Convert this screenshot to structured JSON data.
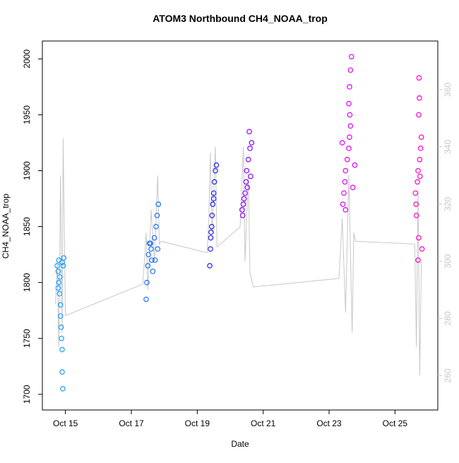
{
  "chart_data": {
    "type": "scatter",
    "title": "ATOM3 Northbound CH4_NOAA_trop",
    "x_label": "Date",
    "y_label": "CH4_NOAA_trop",
    "xlim": [
      14.3,
      26.3
    ],
    "ylim": [
      1686,
      2016
    ],
    "y2lim": [
      248,
      377
    ],
    "xticks": [
      {
        "value": 15,
        "label": "Oct 15"
      },
      {
        "value": 17,
        "label": "Oct 17"
      },
      {
        "value": 19,
        "label": "Oct 19"
      },
      {
        "value": 21,
        "label": "Oct 21"
      },
      {
        "value": 23,
        "label": "Oct 23"
      },
      {
        "value": 25,
        "label": "Oct 25"
      }
    ],
    "yticks": [
      1700,
      1750,
      1800,
      1850,
      1900,
      1950,
      2000
    ],
    "y2ticks": [
      260,
      280,
      300,
      320,
      340,
      360
    ],
    "y2_color": "#c8c8c8",
    "series": [
      {
        "color": "#c8c8c8",
        "axis": "y2",
        "mode": "line",
        "x": [
          14.7,
          14.75,
          14.8,
          14.85,
          14.9,
          14.93,
          15.0,
          17.35,
          17.45,
          17.5,
          17.6,
          17.7,
          17.8,
          17.85,
          17.9,
          19.3,
          19.35,
          19.4,
          19.45,
          19.55,
          19.6,
          20.3,
          20.4,
          20.45,
          20.55,
          20.6,
          20.7,
          23.3,
          23.4,
          23.5,
          23.6,
          23.7,
          23.75,
          23.8,
          25.6,
          25.65,
          25.7,
          25.75,
          25.8
        ],
        "values": [
          285,
          300,
          270,
          330,
          275,
          343,
          281,
          292,
          310,
          290,
          318,
          300,
          330,
          306,
          307,
          303,
          315,
          338,
          310,
          340,
          305,
          312,
          340,
          300,
          330,
          296,
          291,
          294,
          315,
          282,
          330,
          275,
          310,
          307,
          306,
          270,
          325,
          260,
          300
        ]
      },
      {
        "color": "#1a9fff",
        "mode": "points",
        "x": [
          14.75,
          14.8,
          14.78,
          14.8,
          14.82,
          14.85,
          14.85,
          14.87,
          14.88,
          14.9,
          14.9,
          14.92,
          14.93,
          14.95,
          14.9,
          14.83,
          14.78
        ],
        "values": [
          1815,
          1820,
          1810,
          1800,
          1790,
          1780,
          1770,
          1760,
          1750,
          1740,
          1720,
          1705,
          1815,
          1822,
          1818,
          1805,
          1795
        ]
      },
      {
        "color": "#1f6fff",
        "mode": "points",
        "x": [
          17.45,
          17.47,
          17.5,
          17.52,
          17.55,
          17.6,
          17.62,
          17.65,
          17.7,
          17.75,
          17.78,
          17.82,
          17.8,
          17.72,
          17.58
        ],
        "values": [
          1785,
          1800,
          1815,
          1825,
          1835,
          1830,
          1820,
          1810,
          1840,
          1850,
          1860,
          1870,
          1830,
          1820,
          1835
        ]
      },
      {
        "color": "#2222ee",
        "mode": "points",
        "x": [
          19.38,
          19.4,
          19.42,
          19.45,
          19.47,
          19.5,
          19.52,
          19.55,
          19.58,
          19.44,
          19.41,
          19.5
        ],
        "values": [
          1815,
          1830,
          1845,
          1860,
          1870,
          1880,
          1890,
          1900,
          1905,
          1850,
          1840,
          1875
        ]
      },
      {
        "color": "#8a00ff",
        "mode": "points",
        "x": [
          20.38,
          20.4,
          20.45,
          20.48,
          20.5,
          20.55,
          20.6,
          20.65,
          20.58,
          20.42,
          20.36,
          20.52,
          20.62
        ],
        "values": [
          1860,
          1870,
          1880,
          1890,
          1900,
          1910,
          1920,
          1925,
          1935,
          1875,
          1865,
          1885,
          1895
        ]
      },
      {
        "color": "#dd00ff",
        "mode": "points",
        "x": [
          23.42,
          23.45,
          23.48,
          23.5,
          23.55,
          23.6,
          23.62,
          23.65,
          23.63,
          23.6,
          23.62,
          23.65,
          23.68,
          23.5,
          23.72,
          23.78,
          23.4
        ],
        "values": [
          1870,
          1880,
          1890,
          1900,
          1910,
          1920,
          1930,
          1940,
          1950,
          1960,
          1975,
          1990,
          2002,
          1865,
          1885,
          1905,
          1925
        ]
      },
      {
        "color": "#ff00cc",
        "mode": "points",
        "x": [
          25.7,
          25.72,
          25.65,
          25.62,
          25.68,
          25.7,
          25.75,
          25.78,
          25.8,
          25.72,
          25.74,
          25.73,
          25.82,
          25.64,
          25.76
        ],
        "values": [
          1820,
          1840,
          1860,
          1880,
          1890,
          1900,
          1910,
          1920,
          1930,
          1950,
          1965,
          1983,
          1830,
          1870,
          1895
        ]
      }
    ]
  }
}
